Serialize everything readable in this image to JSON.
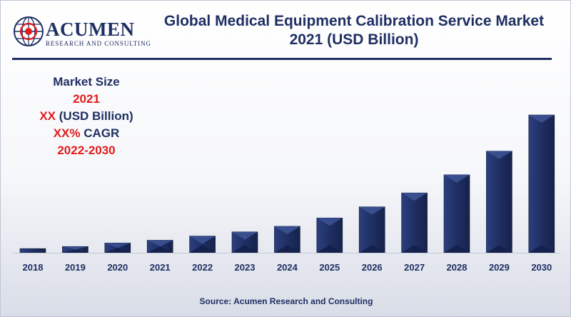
{
  "logo": {
    "brand": "ACUMEN",
    "tagline": "RESEARCH AND CONSULTING"
  },
  "title": {
    "line1": "Global Medical Equipment Calibration Service Market",
    "line2": "2021 (USD Billion)"
  },
  "info": {
    "label": "Market Size",
    "year": "2021",
    "value_prefix": "XX",
    "value_unit": " (USD Billion)",
    "cagr_prefix": "XX%",
    "cagr_suffix": " CAGR",
    "period": "2022-2030"
  },
  "source": "Source: Acumen Research and Consulting",
  "colors": {
    "bar": "#1f2f63",
    "text": "#1f2f63",
    "accent": "#e21b1b"
  },
  "chart_data": {
    "type": "bar",
    "title": "Global Medical Equipment Calibration Service Market 2021 (USD Billion)",
    "categories": [
      "2018",
      "2019",
      "2020",
      "2021",
      "2022",
      "2023",
      "2024",
      "2025",
      "2026",
      "2027",
      "2028",
      "2029",
      "2030"
    ],
    "values": [
      3,
      4.5,
      7,
      9,
      12,
      15,
      19,
      25,
      33,
      43,
      56,
      73,
      99
    ],
    "xlabel": "",
    "ylabel": "",
    "ylim": [
      0,
      100
    ],
    "grid": false,
    "legend": "none",
    "values_relative": true
  }
}
